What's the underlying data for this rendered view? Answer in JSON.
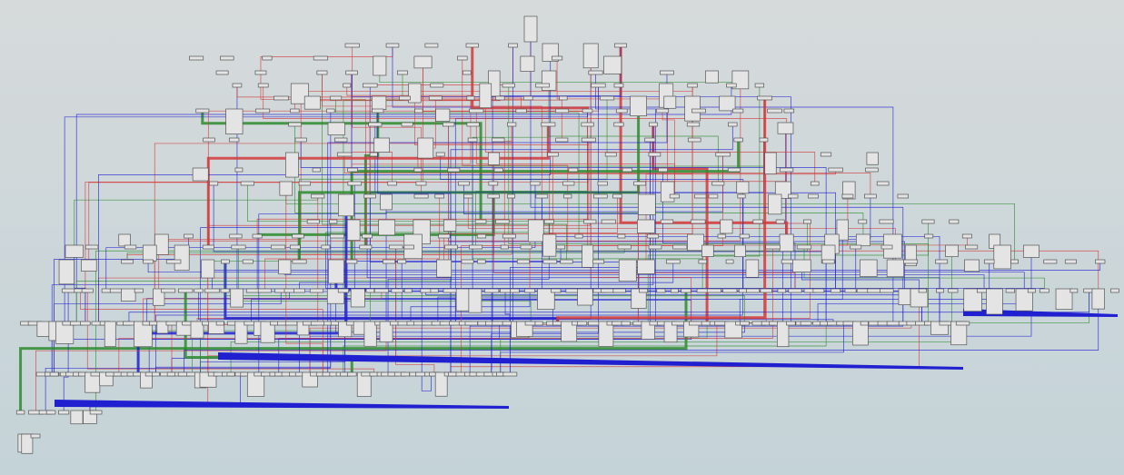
{
  "diagram": {
    "type": "hierarchical-graph",
    "node_fill": "#e4e4e4",
    "node_stroke": "#555555",
    "edge_colors": {
      "red": "#d23a3a",
      "green": "#2e8b2e",
      "blue": "#2020d0"
    }
  }
}
